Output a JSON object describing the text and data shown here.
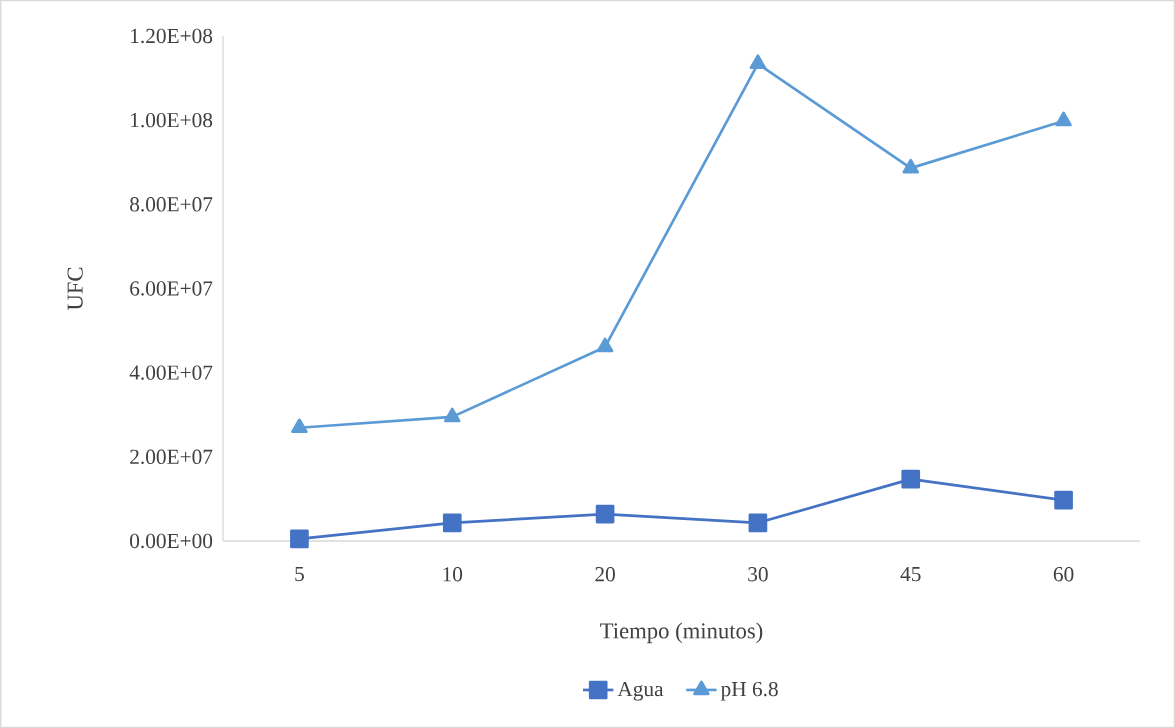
{
  "chart_data": {
    "type": "line",
    "xlabel": "Tiempo (minutos)",
    "ylabel": "UFC",
    "categories": [
      "5",
      "10",
      "20",
      "30",
      "45",
      "60"
    ],
    "series": [
      {
        "name": "Agua",
        "color": "#4472c4",
        "marker": "square",
        "values": [
          500000,
          4300000,
          6400000,
          4300000,
          14700000,
          9700000
        ]
      },
      {
        "name": "pH 6.8",
        "color": "#5b9bd5",
        "marker": "triangle",
        "values": [
          26900000,
          29500000,
          46100000,
          113400000,
          88600000,
          99800000
        ]
      }
    ],
    "ylim": [
      0,
      120000000
    ],
    "yticks": [
      {
        "value": 0,
        "label": "0.00E+00"
      },
      {
        "value": 20000000,
        "label": "2.00E+07"
      },
      {
        "value": 40000000,
        "label": "4.00E+07"
      },
      {
        "value": 60000000,
        "label": "6.00E+07"
      },
      {
        "value": 80000000,
        "label": "8.00E+07"
      },
      {
        "value": 100000000,
        "label": "1.00E+08"
      },
      {
        "value": 120000000,
        "label": "1.20E+08"
      }
    ],
    "legend": "bottom",
    "line_style": "solid"
  }
}
